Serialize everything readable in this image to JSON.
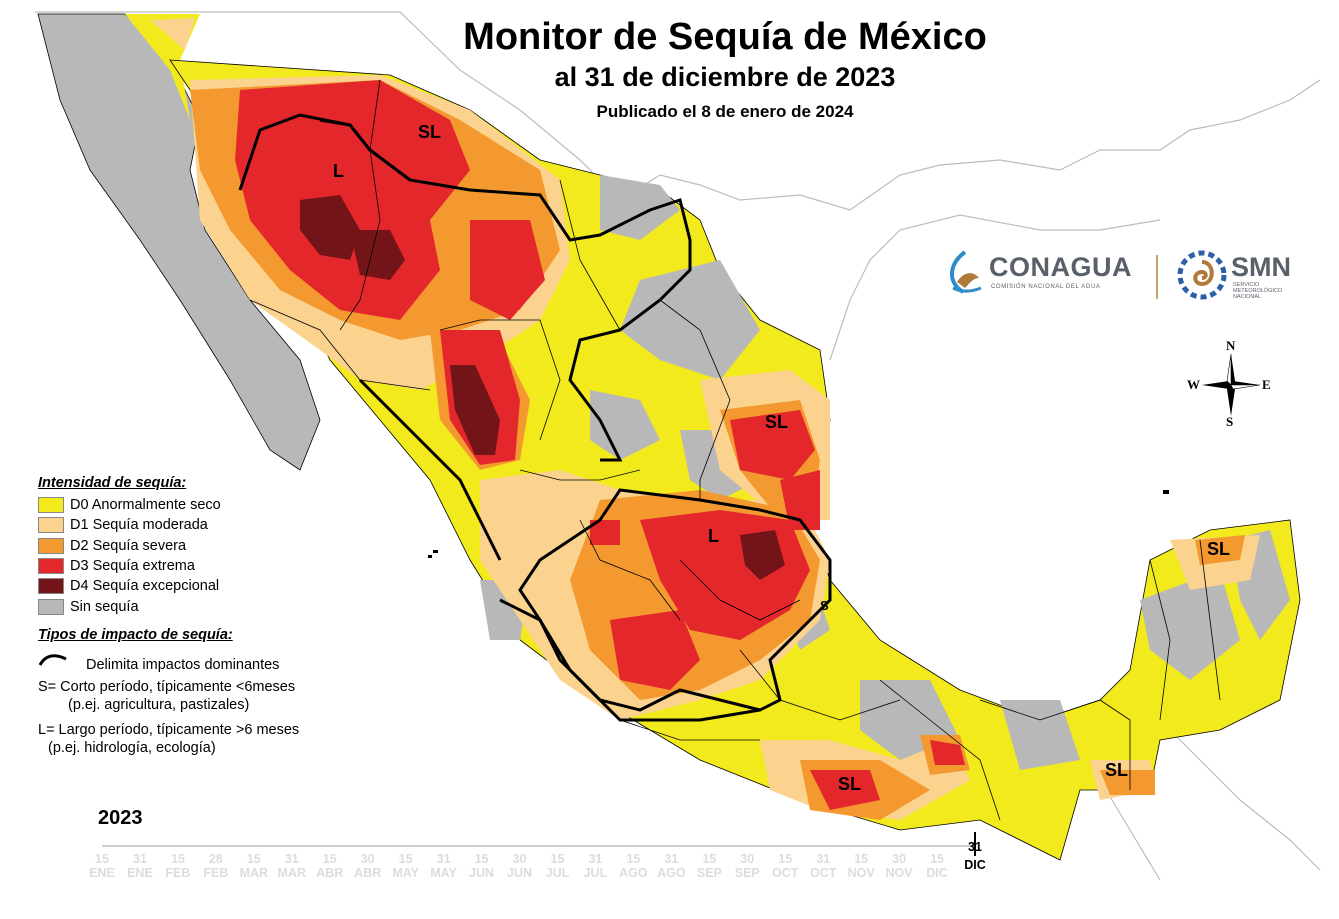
{
  "title": "Monitor de Sequía de México",
  "subtitle": "al 31 de diciembre de 2023",
  "published": "Publicado el 8 de enero de 2024",
  "colors": {
    "D0": "#f2ea1c",
    "D1": "#fbd38f",
    "D2": "#f3992f",
    "D3": "#e3272b",
    "D4": "#731418",
    "none": "#b8b8b8",
    "sea": "#ffffff",
    "land_other": "#ffffff"
  },
  "legend": {
    "intensity_heading": "Intensidad de sequía:",
    "items": [
      {
        "code": "D0",
        "label": "D0 Anormalmente seco"
      },
      {
        "code": "D1",
        "label": "D1 Sequía moderada"
      },
      {
        "code": "D2",
        "label": "D2 Sequía severa"
      },
      {
        "code": "D3",
        "label": "D3 Sequía extrema"
      },
      {
        "code": "D4",
        "label": "D4 Sequía excepcional"
      },
      {
        "code": "none",
        "label": "Sin sequía"
      }
    ],
    "impact_heading": "Tipos de impacto de sequía:",
    "impact_line": "Delimita impactos dominantes",
    "impact_s": "S= Corto período, típicamente <6meses",
    "impact_s_example": "(p.ej. agricultura, pastizales)",
    "impact_l": "L= Largo período, típicamente >6 meses",
    "impact_l_example": "(p.ej. hidrología, ecología)"
  },
  "map_labels": {
    "sl_north": "SL",
    "l_north": "L",
    "sl_northeast": "SL",
    "l_center": "L",
    "s_center": "S",
    "sl_yucatan": "SL",
    "sl_south": "SL",
    "sl_chiapas": "SL"
  },
  "logos": {
    "conagua": "CONAGUA",
    "conagua_sub": "COMISIÓN NACIONAL DEL AGUA",
    "smn": "SMN",
    "smn_sub": [
      "SERVICIO",
      "METEOROLÓGICO",
      "NACIONAL"
    ]
  },
  "compass": {
    "n": "N",
    "s": "S",
    "e": "E",
    "w": "W"
  },
  "timeline": {
    "year": "2023",
    "ticks": [
      {
        "day": "15",
        "month": "ENE"
      },
      {
        "day": "31",
        "month": "ENE"
      },
      {
        "day": "15",
        "month": "FEB"
      },
      {
        "day": "28",
        "month": "FEB"
      },
      {
        "day": "15",
        "month": "MAR"
      },
      {
        "day": "31",
        "month": "MAR"
      },
      {
        "day": "15",
        "month": "ABR"
      },
      {
        "day": "30",
        "month": "ABR"
      },
      {
        "day": "15",
        "month": "MAY"
      },
      {
        "day": "31",
        "month": "MAY"
      },
      {
        "day": "15",
        "month": "JUN"
      },
      {
        "day": "30",
        "month": "JUN"
      },
      {
        "day": "15",
        "month": "JUL"
      },
      {
        "day": "31",
        "month": "JUL"
      },
      {
        "day": "15",
        "month": "AGO"
      },
      {
        "day": "31",
        "month": "AGO"
      },
      {
        "day": "15",
        "month": "SEP"
      },
      {
        "day": "30",
        "month": "SEP"
      },
      {
        "day": "15",
        "month": "OCT"
      },
      {
        "day": "31",
        "month": "OCT"
      },
      {
        "day": "15",
        "month": "NOV"
      },
      {
        "day": "30",
        "month": "NOV"
      },
      {
        "day": "15",
        "month": "DIC"
      },
      {
        "day": "31",
        "month": "DIC"
      }
    ],
    "current_index": 23
  }
}
